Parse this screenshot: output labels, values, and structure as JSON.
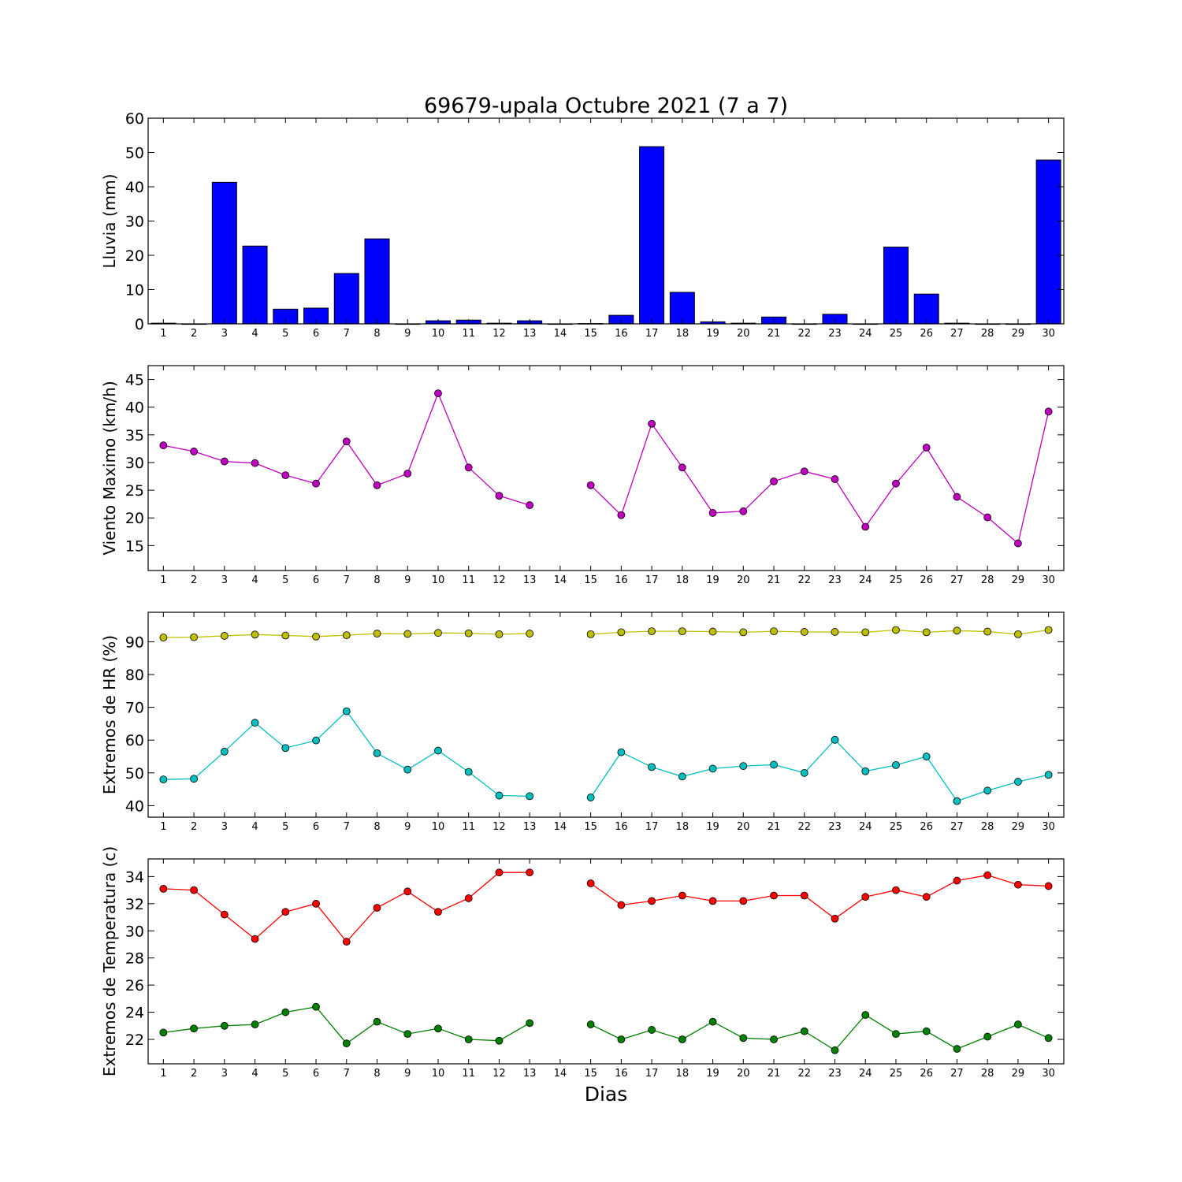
{
  "figure_title": "69679-upala Octubre 2021  (7 a 7)",
  "xlabel": "Dias",
  "chart_data": [
    {
      "type": "bar",
      "ylabel": "Lluvia (mm)",
      "ylim": [
        0,
        60
      ],
      "yticks": [
        0,
        10,
        20,
        30,
        40,
        50,
        60
      ],
      "x": [
        1,
        2,
        3,
        4,
        5,
        6,
        7,
        8,
        9,
        10,
        11,
        12,
        13,
        14,
        15,
        16,
        17,
        18,
        19,
        20,
        21,
        22,
        23,
        24,
        25,
        26,
        27,
        28,
        29,
        30
      ],
      "series": [
        {
          "color": "#0000ff",
          "values": [
            0.2,
            0,
            41.3,
            22.7,
            4.3,
            4.6,
            14.7,
            24.8,
            0,
            0.9,
            1.1,
            0.2,
            0.9,
            0,
            0.1,
            2.5,
            51.7,
            9.2,
            0.6,
            0.2,
            2.0,
            0,
            2.8,
            0,
            22.4,
            8.7,
            0.2,
            0,
            0,
            47.8
          ]
        }
      ]
    },
    {
      "type": "line",
      "ylabel": "Viento Maximo (km/h)",
      "ylim": [
        10.5,
        47.5
      ],
      "yticks": [
        15,
        20,
        25,
        30,
        35,
        40,
        45
      ],
      "x": [
        1,
        2,
        3,
        4,
        5,
        6,
        7,
        8,
        9,
        10,
        11,
        12,
        13,
        14,
        15,
        16,
        17,
        18,
        19,
        20,
        21,
        22,
        23,
        24,
        25,
        26,
        27,
        28,
        29,
        30
      ],
      "series": [
        {
          "color": "#bf00bf",
          "values": [
            33.1,
            32.0,
            30.2,
            29.9,
            27.7,
            26.2,
            33.8,
            25.9,
            28.0,
            42.5,
            29.1,
            24.0,
            22.3,
            null,
            25.9,
            20.5,
            37.0,
            29.1,
            20.9,
            21.2,
            26.6,
            28.4,
            27.0,
            18.4,
            26.2,
            32.7,
            23.8,
            20.1,
            15.4,
            39.2
          ]
        }
      ]
    },
    {
      "type": "line",
      "ylabel": "Extremos de HR (%)",
      "ylim": [
        36.5,
        99
      ],
      "yticks": [
        40,
        50,
        60,
        70,
        80,
        90
      ],
      "x": [
        1,
        2,
        3,
        4,
        5,
        6,
        7,
        8,
        9,
        10,
        11,
        12,
        13,
        14,
        15,
        16,
        17,
        18,
        19,
        20,
        21,
        22,
        23,
        24,
        25,
        26,
        27,
        28,
        29,
        30
      ],
      "series": [
        {
          "color": "#bfbf00",
          "values": [
            91.3,
            91.4,
            91.8,
            92.2,
            91.9,
            91.6,
            92.0,
            92.5,
            92.4,
            92.7,
            92.6,
            92.3,
            92.5,
            null,
            92.3,
            92.9,
            93.2,
            93.2,
            93.1,
            92.9,
            93.2,
            93.0,
            93.0,
            92.9,
            93.6,
            92.9,
            93.4,
            93.1,
            92.3,
            93.6
          ]
        },
        {
          "color": "#00bfbf",
          "values": [
            48.0,
            48.2,
            56.5,
            65.3,
            57.6,
            59.9,
            68.8,
            56.0,
            51.0,
            56.8,
            50.3,
            43.1,
            42.9,
            null,
            42.5,
            56.3,
            51.8,
            48.9,
            51.3,
            52.1,
            52.5,
            50.0,
            60.1,
            50.5,
            52.4,
            55.0,
            41.4,
            44.6,
            47.3,
            49.4
          ]
        }
      ]
    },
    {
      "type": "line",
      "ylabel": "Extremos de Temperatura (c)",
      "ylim": [
        20.2,
        35.3
      ],
      "yticks": [
        22,
        24,
        26,
        28,
        30,
        32,
        34
      ],
      "x": [
        1,
        2,
        3,
        4,
        5,
        6,
        7,
        8,
        9,
        10,
        11,
        12,
        13,
        14,
        15,
        16,
        17,
        18,
        19,
        20,
        21,
        22,
        23,
        24,
        25,
        26,
        27,
        28,
        29,
        30
      ],
      "series": [
        {
          "color": "#ff0000",
          "values": [
            33.1,
            33.0,
            31.2,
            29.4,
            31.4,
            32.0,
            29.2,
            31.7,
            32.9,
            31.4,
            32.4,
            34.3,
            34.3,
            null,
            33.5,
            31.9,
            32.2,
            32.6,
            32.2,
            32.2,
            32.6,
            32.6,
            30.9,
            32.5,
            33.0,
            32.5,
            33.7,
            34.1,
            33.4,
            33.3
          ]
        },
        {
          "color": "#008000",
          "values": [
            22.5,
            22.8,
            23.0,
            23.1,
            24.0,
            24.4,
            21.7,
            23.3,
            22.4,
            22.8,
            22.0,
            21.9,
            23.2,
            null,
            23.1,
            22.0,
            22.7,
            22.0,
            23.3,
            22.1,
            22.0,
            22.6,
            21.2,
            23.8,
            22.4,
            22.6,
            21.3,
            22.2,
            23.1,
            22.1
          ]
        }
      ]
    }
  ]
}
